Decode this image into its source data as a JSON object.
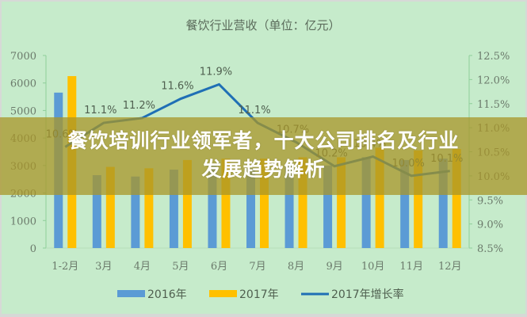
{
  "chart_data": {
    "type": "bar",
    "title": "餐饮行业营收（单位：亿元）",
    "categories": [
      "1-2月",
      "3月",
      "4月",
      "5月",
      "6月",
      "7月",
      "8月",
      "9月",
      "10月",
      "11月",
      "12月"
    ],
    "series": [
      {
        "name": "2016年",
        "type": "bar",
        "axis": "left",
        "color": "#5b9bd5",
        "values": [
          5650,
          2650,
          2600,
          2850,
          3050,
          2900,
          3000,
          3000,
          3300,
          3200,
          3250
        ]
      },
      {
        "name": "2017年",
        "type": "bar",
        "axis": "left",
        "color": "#ffc000",
        "values": [
          6250,
          2950,
          2900,
          3200,
          3250,
          3250,
          3300,
          3300,
          3650,
          3550,
          3600
        ]
      },
      {
        "name": "2017年增长率",
        "type": "line",
        "axis": "right",
        "color": "#1f6fb5",
        "values": [
          10.6,
          11.1,
          11.2,
          11.6,
          11.9,
          11.1,
          10.7,
          10.2,
          10.4,
          10.0,
          10.1
        ],
        "labels": [
          "10.6%",
          "11.1%",
          "11.2%",
          "11.6%",
          "11.9%",
          "11.1%",
          "10.7%",
          "10.2%",
          "10.4%",
          "10.0%",
          "10.1%"
        ]
      }
    ],
    "left_axis": {
      "ticks": [
        "0",
        "1000",
        "2000",
        "3000",
        "4000",
        "5000",
        "6000",
        "7000"
      ],
      "ylim": [
        0,
        7000
      ]
    },
    "right_axis": {
      "ticks": [
        "8.5%",
        "9.0%",
        "9.5%",
        "10.0%",
        "10.5%",
        "11.0%",
        "11.5%",
        "12.0%",
        "12.5%"
      ],
      "ylim": [
        8.5,
        12.5
      ]
    },
    "xlabel": "",
    "ylabel": "",
    "grid": false,
    "legend_position": "bottom"
  },
  "legend": {
    "items": [
      "2016年",
      "2017年",
      "2017年增长率"
    ]
  },
  "banner": {
    "line1": "餐饮培训行业领军者，十大公司排名及行业",
    "line2": "发展趋势解析"
  }
}
